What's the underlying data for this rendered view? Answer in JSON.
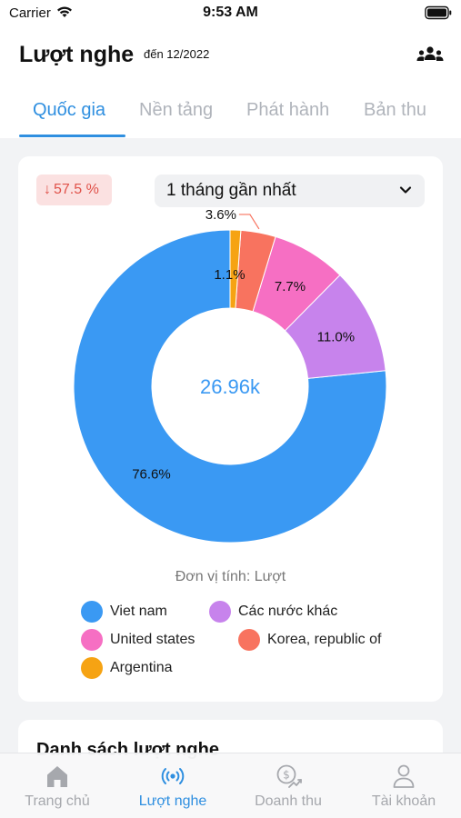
{
  "status_bar": {
    "carrier": "Carrier",
    "time": "9:53 AM"
  },
  "header": {
    "title": "Lượt nghe",
    "date_note": "đến 12/2022",
    "team_icon": "group-users-icon"
  },
  "tabs": [
    {
      "label": "Quốc gia",
      "active": true
    },
    {
      "label": "Nền tảng",
      "active": false
    },
    {
      "label": "Phát hành",
      "active": false
    },
    {
      "label": "Bản thu",
      "active": false
    }
  ],
  "summary": {
    "change_text": "57.5 %",
    "change_direction": "down",
    "change_color": "#e0524a",
    "period_label": "1 tháng gần nhất"
  },
  "chart_data": {
    "type": "pie",
    "style": "donut",
    "center_label": "26.96k",
    "slices": [
      {
        "label": "Viet nam",
        "value": 76.6,
        "value_label": "76.6%",
        "color": "#3a99f3"
      },
      {
        "label": "Các nước khác",
        "value": 11.0,
        "value_label": "11.0%",
        "color": "#c783ec"
      },
      {
        "label": "United states",
        "value": 7.7,
        "value_label": "7.7%",
        "color": "#f66fc3"
      },
      {
        "label": "Korea, republic of",
        "value": 3.6,
        "value_label": "3.6%",
        "color": "#f8735f"
      },
      {
        "label": "Argentina",
        "value": 1.1,
        "value_label": "1.1%",
        "color": "#f6a313"
      }
    ],
    "unit_note": "Đơn vị tính: Lượt"
  },
  "list_section": {
    "title": "Danh sách lượt nghe"
  },
  "bottom_nav": [
    {
      "label": "Trang chủ",
      "icon": "home-icon",
      "active": false
    },
    {
      "label": "Lượt nghe",
      "icon": "broadcast-icon",
      "active": true
    },
    {
      "label": "Doanh thu",
      "icon": "revenue-icon",
      "active": false
    },
    {
      "label": "Tài khoản",
      "icon": "account-icon",
      "active": false
    }
  ],
  "colors": {
    "accent": "#2f8fe0",
    "inactive": "#a6a8ad"
  }
}
